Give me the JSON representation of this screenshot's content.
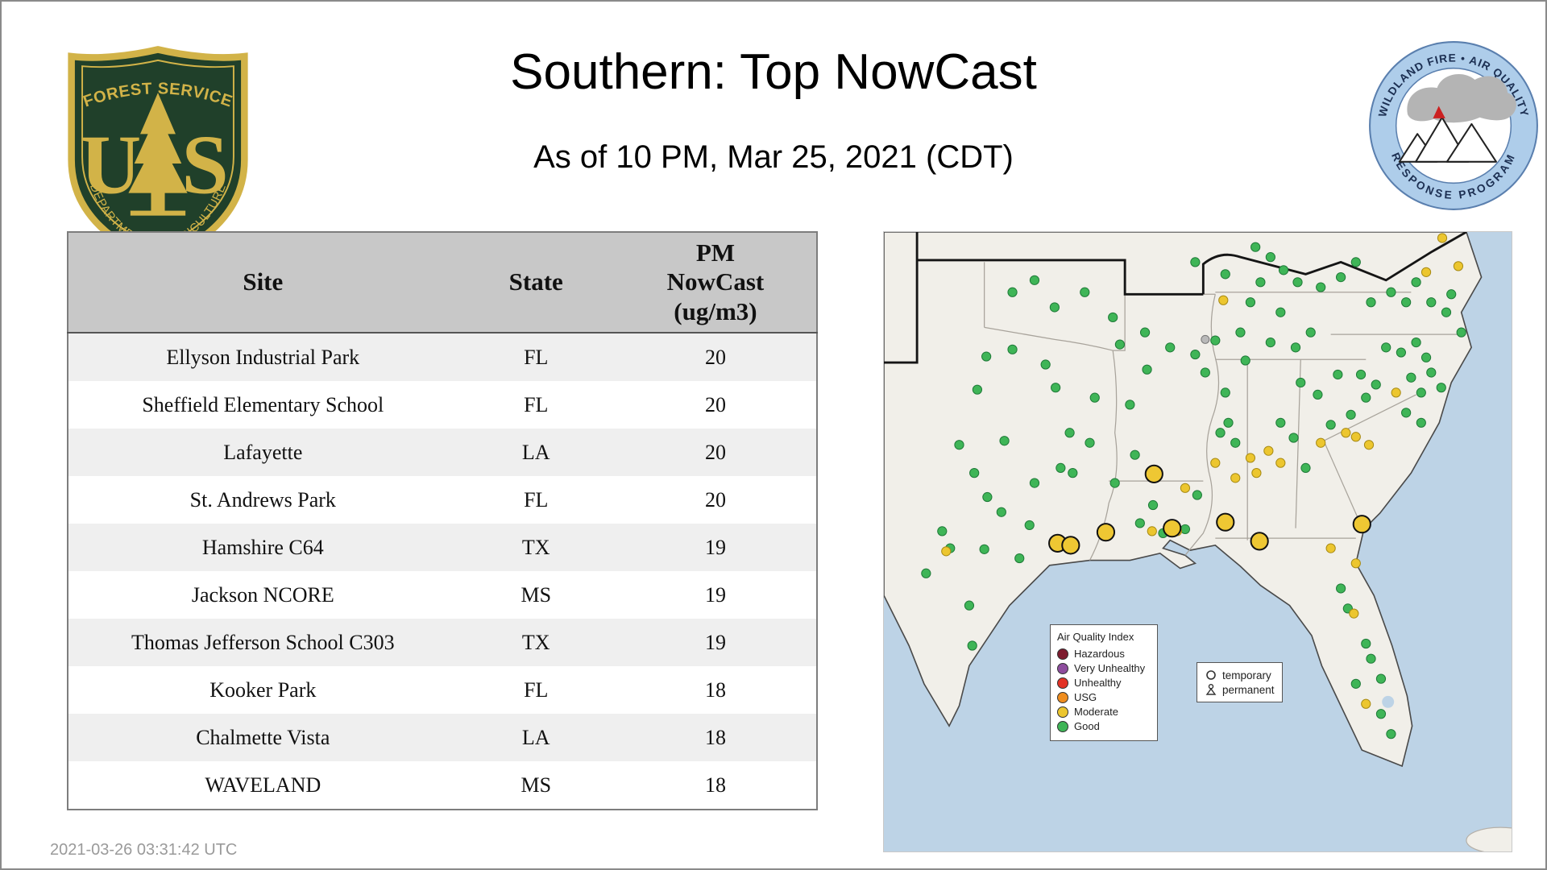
{
  "page": {
    "title": "Southern: Top NowCast",
    "subtitle": "As of 10 PM, Mar 25, 2021 (CDT)",
    "footer_timestamp": "2021-03-26 03:31:42 UTC"
  },
  "logos": {
    "forest_service": {
      "top_text": "FOREST SERVICE",
      "letter_u": "U",
      "letter_s": "S",
      "bottom_text": "DEPARTMENT OF AGRICULTURE"
    },
    "wfaqrp": {
      "top_text": "WILDLAND FIRE • AIR QUALITY",
      "bottom_text": "RESPONSE PROGRAM"
    }
  },
  "table": {
    "headers": {
      "site": "Site",
      "state": "State",
      "pm": "PM\nNowCast\n(ug/m3)"
    }
  },
  "chart_data": {
    "type": "table",
    "title": "Southern: Top NowCast",
    "subtitle": "As of 10 PM, Mar 25, 2021 (CDT)",
    "columns": [
      "Site",
      "State",
      "PM NowCast (ug/m3)"
    ],
    "rows": [
      [
        "Ellyson Industrial Park",
        "FL",
        "20"
      ],
      [
        "Sheffield Elementary School",
        "FL",
        "20"
      ],
      [
        "Lafayette",
        "LA",
        "20"
      ],
      [
        "St. Andrews Park",
        "FL",
        "20"
      ],
      [
        "Hamshire C64",
        "TX",
        "19"
      ],
      [
        "Jackson NCORE",
        "MS",
        "19"
      ],
      [
        "Thomas Jefferson School C303",
        "TX",
        "19"
      ],
      [
        "Kooker Park",
        "FL",
        "18"
      ],
      [
        "Chalmette Vista",
        "LA",
        "18"
      ],
      [
        "WAVELAND",
        "MS",
        "18"
      ]
    ]
  },
  "map": {
    "legend": {
      "title": "Air Quality Index",
      "items": [
        {
          "label": "Hazardous",
          "color": "#7d1b2e"
        },
        {
          "label": "Very Unhealthy",
          "color": "#8e4d9e"
        },
        {
          "label": "Unhealthy",
          "color": "#e33225"
        },
        {
          "label": "USG",
          "color": "#ef8d1e"
        },
        {
          "label": "Moderate",
          "color": "#ecc62f"
        },
        {
          "label": "Good",
          "color": "#3fb557"
        }
      ]
    },
    "marker_legend": {
      "temporary": "temporary",
      "permanent": "permanent"
    },
    "marker_categories": [
      {
        "name": "good",
        "color": "#3fb557",
        "stroke": "#1f7a38",
        "stroke_width": 0.8,
        "r": 4.5,
        "points": [
          [
            102,
            124
          ],
          [
            128,
            117
          ],
          [
            93,
            157
          ],
          [
            171,
            155
          ],
          [
            161,
            132
          ],
          [
            75,
            212
          ],
          [
            185,
            200
          ],
          [
            90,
            240
          ],
          [
            103,
            264
          ],
          [
            117,
            279
          ],
          [
            145,
            292
          ],
          [
            100,
            316
          ],
          [
            135,
            325
          ],
          [
            85,
            372
          ],
          [
            88,
            412
          ],
          [
            66,
            315
          ],
          [
            150,
            250
          ],
          [
            120,
            208
          ],
          [
            58,
            298
          ],
          [
            42,
            340
          ],
          [
            176,
            235
          ],
          [
            188,
            240
          ],
          [
            205,
            210
          ],
          [
            245,
            172
          ],
          [
            210,
            165
          ],
          [
            235,
            112
          ],
          [
            260,
            100
          ],
          [
            228,
            85
          ],
          [
            200,
            60
          ],
          [
            170,
            75
          ],
          [
            150,
            48
          ],
          [
            128,
            60
          ],
          [
            262,
            137
          ],
          [
            285,
            115
          ],
          [
            310,
            122
          ],
          [
            230,
            250
          ],
          [
            250,
            222
          ],
          [
            255,
            290
          ],
          [
            278,
            300
          ],
          [
            300,
            296
          ],
          [
            268,
            272
          ],
          [
            312,
            262
          ],
          [
            335,
            200
          ],
          [
            350,
            210
          ],
          [
            343,
            190
          ],
          [
            355,
            100
          ],
          [
            365,
            70
          ],
          [
            375,
            50
          ],
          [
            385,
            110
          ],
          [
            395,
            80
          ],
          [
            410,
            115
          ],
          [
            425,
            100
          ],
          [
            415,
            150
          ],
          [
            395,
            190
          ],
          [
            340,
            160
          ],
          [
            320,
            140
          ],
          [
            360,
            128
          ],
          [
            330,
            108
          ],
          [
            420,
            235
          ],
          [
            445,
            192
          ],
          [
            465,
            182
          ],
          [
            475,
            142
          ],
          [
            490,
            152
          ],
          [
            432,
            162
          ],
          [
            452,
            142
          ],
          [
            408,
            205
          ],
          [
            500,
            115
          ],
          [
            515,
            120
          ],
          [
            530,
            110
          ],
          [
            540,
            125
          ],
          [
            545,
            140
          ],
          [
            555,
            155
          ],
          [
            535,
            160
          ],
          [
            525,
            145
          ],
          [
            520,
            180
          ],
          [
            535,
            190
          ],
          [
            480,
            165
          ],
          [
            435,
            55
          ],
          [
            455,
            45
          ],
          [
            470,
            30
          ],
          [
            485,
            70
          ],
          [
            505,
            60
          ],
          [
            520,
            70
          ],
          [
            530,
            50
          ],
          [
            545,
            70
          ],
          [
            560,
            80
          ],
          [
            565,
            62
          ],
          [
            575,
            100
          ],
          [
            370,
            15
          ],
          [
            385,
            25
          ],
          [
            398,
            38
          ],
          [
            412,
            50
          ],
          [
            340,
            42
          ],
          [
            310,
            30
          ],
          [
            455,
            355
          ],
          [
            485,
            425
          ],
          [
            495,
            445
          ],
          [
            470,
            450
          ],
          [
            495,
            480
          ],
          [
            505,
            500
          ],
          [
            480,
            410
          ],
          [
            462,
            375
          ]
        ]
      },
      {
        "name": "moderate",
        "color": "#ecc62f",
        "stroke": "#a78a14",
        "stroke_width": 0.8,
        "r": 4.5,
        "points": [
          [
            365,
            225
          ],
          [
            383,
            218
          ],
          [
            395,
            230
          ],
          [
            371,
            240
          ],
          [
            350,
            245
          ],
          [
            470,
            204
          ],
          [
            483,
            212
          ],
          [
            510,
            160
          ],
          [
            435,
            210
          ],
          [
            460,
            200
          ],
          [
            62,
            318
          ],
          [
            267,
            298
          ],
          [
            292,
            298
          ],
          [
            445,
            315
          ],
          [
            470,
            330
          ],
          [
            468,
            380
          ],
          [
            480,
            470
          ],
          [
            556,
            6
          ],
          [
            572,
            34
          ],
          [
            540,
            40
          ],
          [
            338,
            68
          ],
          [
            300,
            255
          ],
          [
            330,
            230
          ]
        ]
      },
      {
        "name": "moderate-top-site",
        "color": "#eec733",
        "stroke": "#111111",
        "stroke_width": 1.6,
        "r": 8.5,
        "points": [
          [
            173,
            310
          ],
          [
            186,
            312
          ],
          [
            221,
            299
          ],
          [
            269,
            241
          ],
          [
            287,
            295
          ],
          [
            340,
            289
          ],
          [
            374,
            308
          ],
          [
            476,
            291
          ]
        ]
      },
      {
        "name": "no-data",
        "color": "#b9b9b9",
        "stroke": "#777777",
        "stroke_width": 0.8,
        "r": 4,
        "points": [
          [
            320,
            107
          ]
        ]
      }
    ]
  }
}
